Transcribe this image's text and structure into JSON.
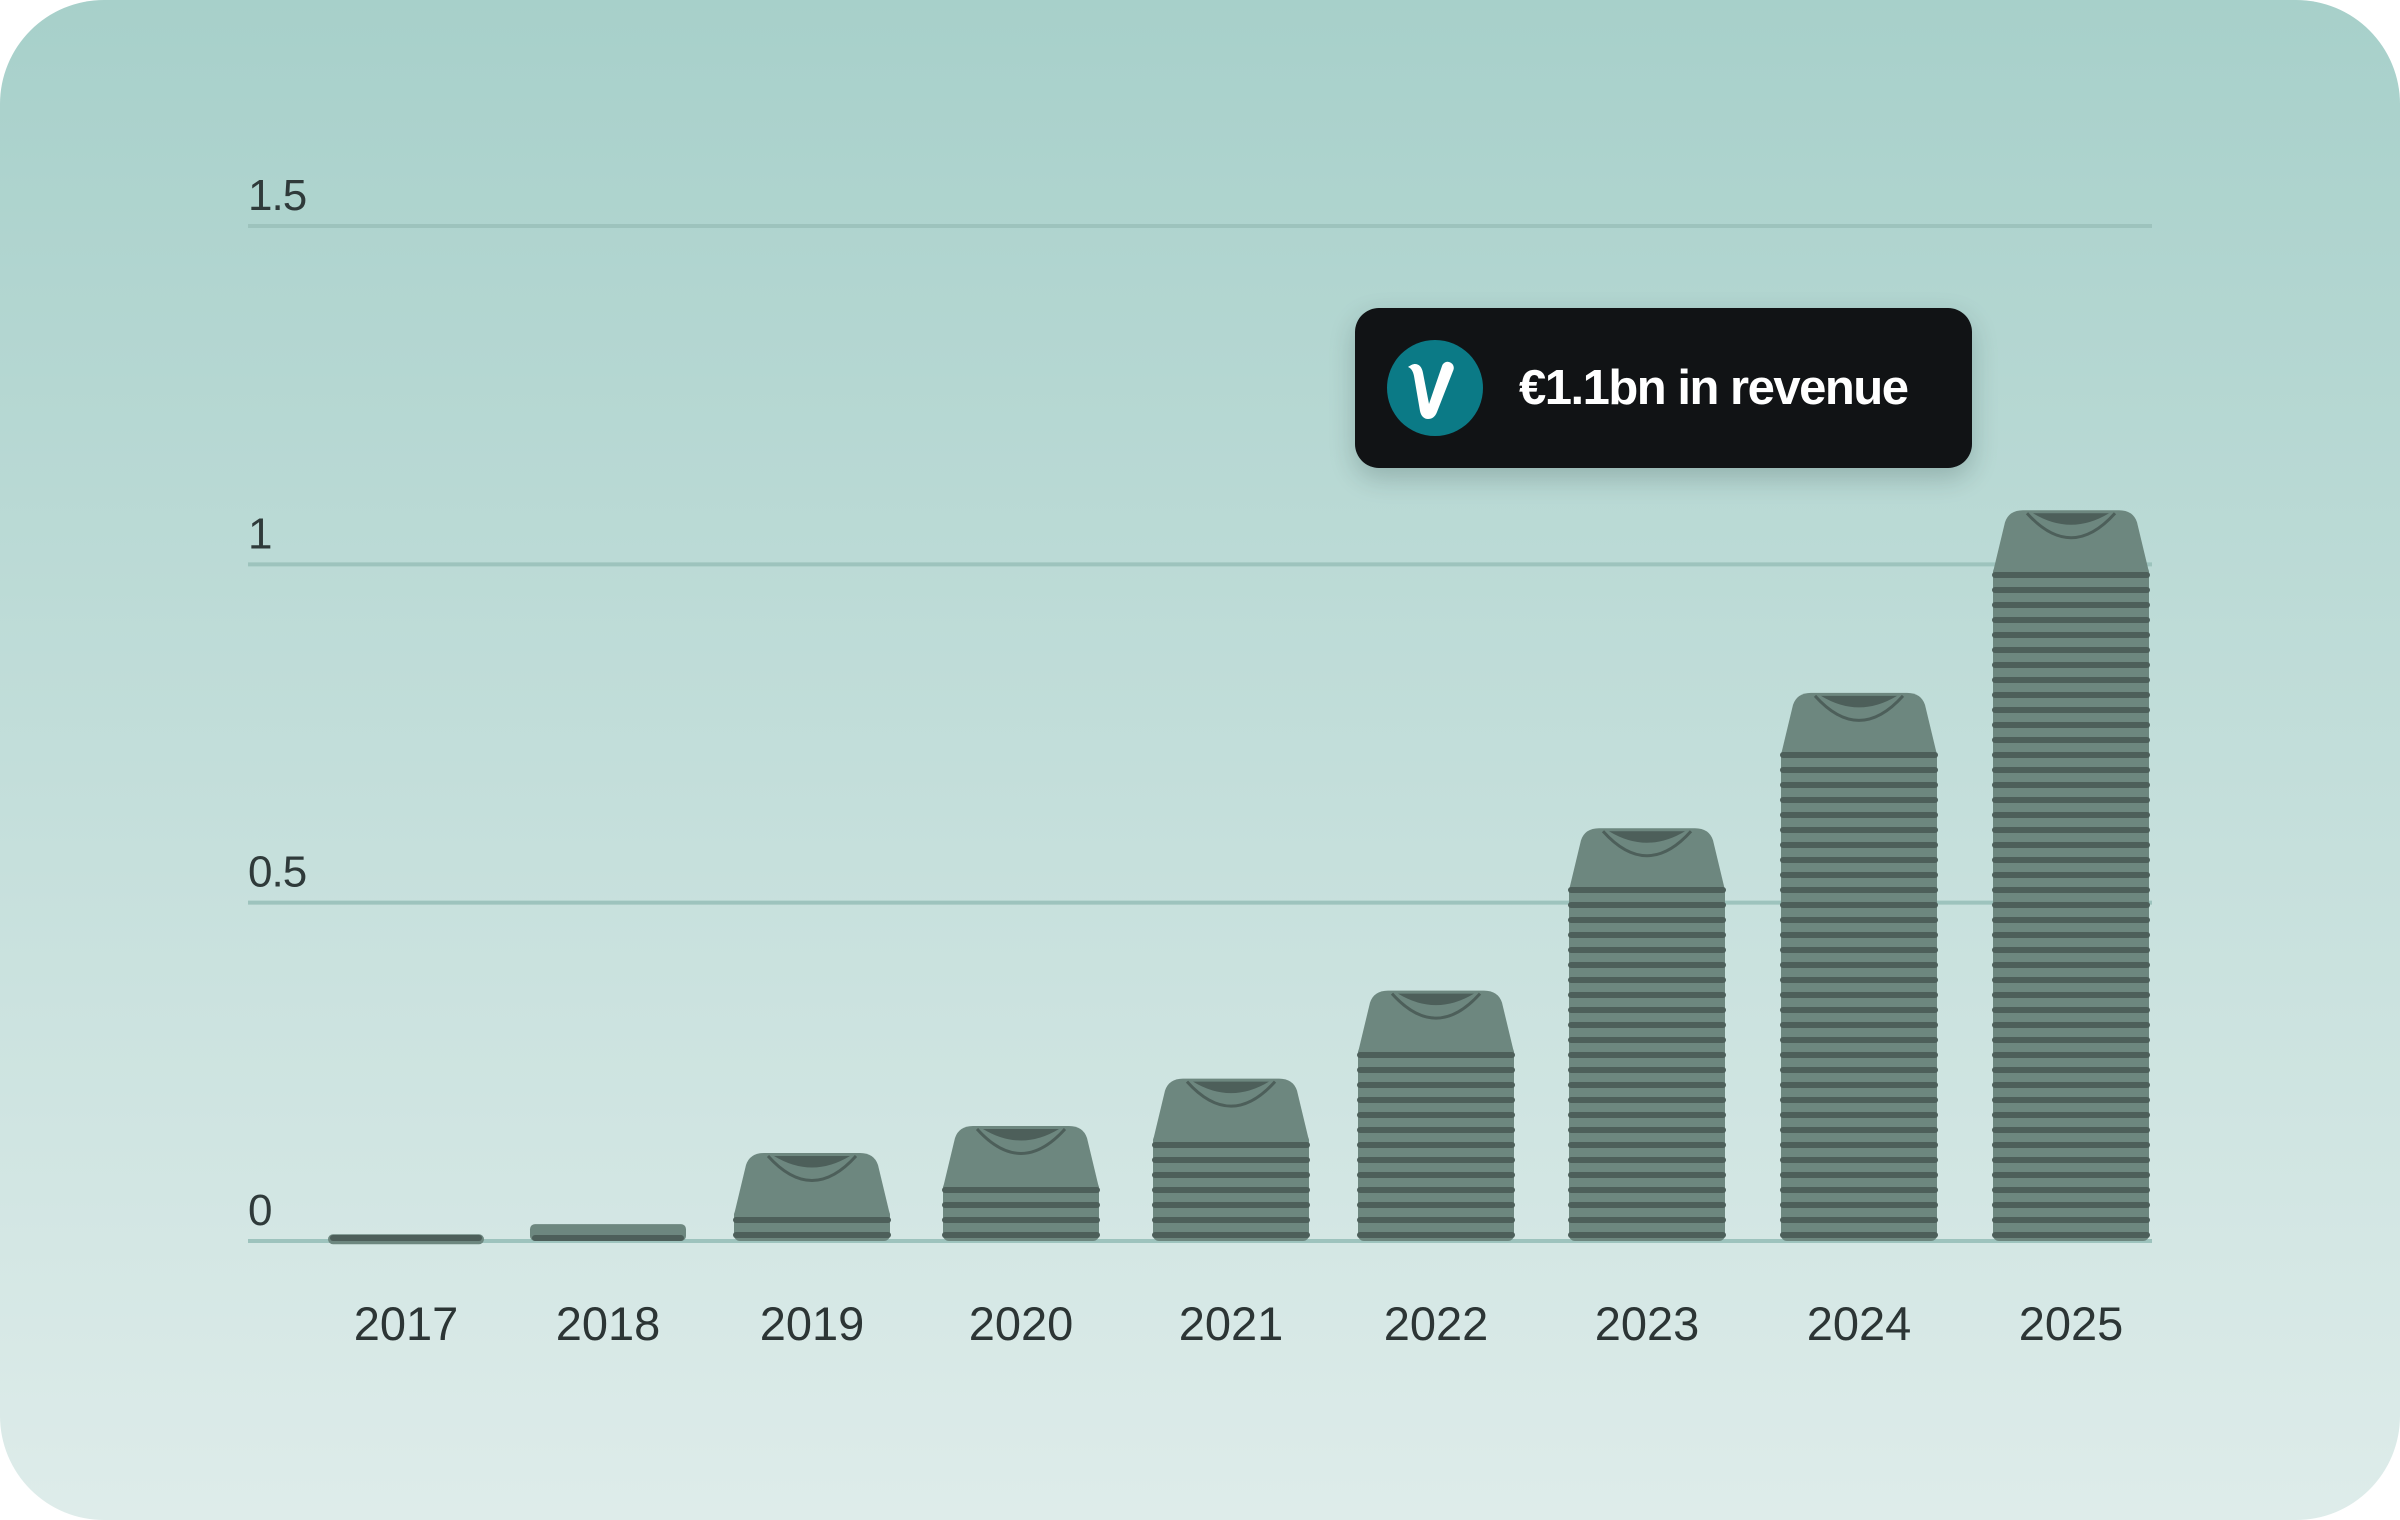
{
  "chart_data": {
    "type": "bar",
    "title": "",
    "xlabel": "",
    "ylabel": "",
    "ylim": [
      0,
      1.5
    ],
    "yticks": [
      "0",
      "0.5",
      "1",
      "1.5"
    ],
    "grid": true,
    "categories": [
      "2017",
      "2018",
      "2019",
      "2020",
      "2021",
      "2022",
      "2023",
      "2024",
      "2025"
    ],
    "values": [
      0.01,
      0.025,
      0.13,
      0.17,
      0.24,
      0.37,
      0.61,
      0.81,
      1.08
    ],
    "annotation": "€1.1bn in revenue"
  },
  "colors": {
    "background_top": "#a7d0ca",
    "background_bottom": "#deecea",
    "grid": "#9dc3bd",
    "bar": "#6d877f",
    "bar_line": "#4d5f5a",
    "logo": "#0b7a86",
    "callout": "#111315"
  },
  "callout": {
    "logo_icon": "brand-v-icon"
  }
}
